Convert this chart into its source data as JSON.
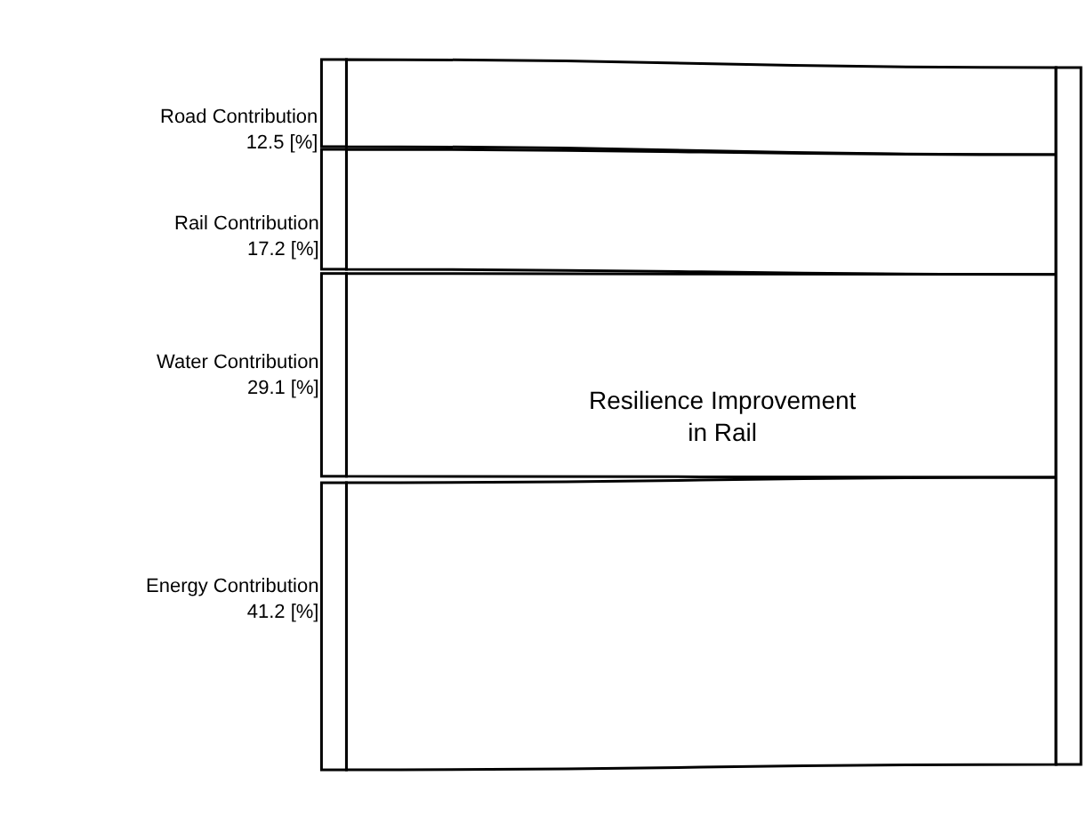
{
  "chart_data": {
    "type": "other",
    "categories": [
      "Road Contribution",
      "Rail Contribution",
      "Water Contribution",
      "Energy Contribution"
    ],
    "values": [
      12.5,
      17.2,
      29.1,
      41.2
    ],
    "value_labels": [
      "12.5 [%]",
      "17.2 [%]",
      "29.1 [%]",
      "41.2 [%]"
    ],
    "color": "#ffffff",
    "annotations": [
      "Resilience Improvement\nin Rail"
    ]
  }
}
